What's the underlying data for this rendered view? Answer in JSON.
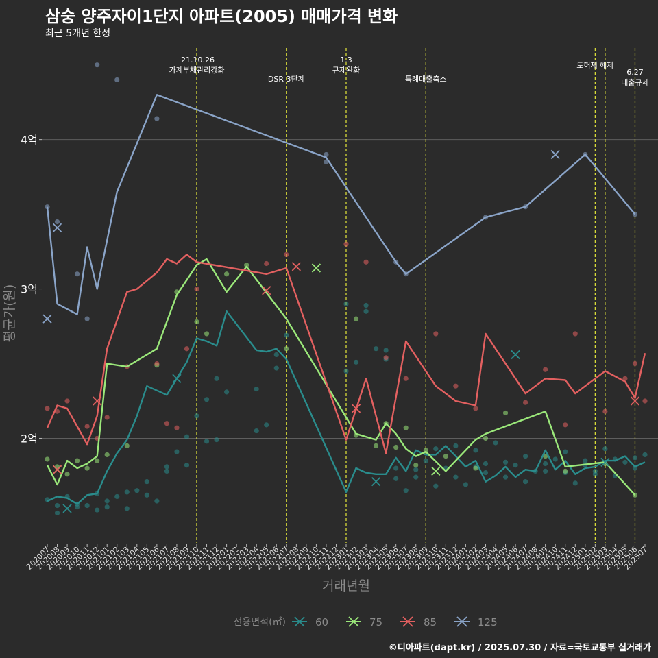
{
  "title": "삼숭 양주자이1단지 아파트(2005) 매매가격 변화",
  "subtitle": "최근 5개년 한정",
  "caption": "©디아파트(dapt.kr) / 2025.07.30 / 자료=국토교통부 실거래가",
  "colors": {
    "background": "#2b2b2b",
    "grid": "#5e5e5e",
    "text": "#ffffff",
    "axis_title": "#8a8a8a",
    "event_line": "#e5e83a"
  },
  "chart_data": {
    "type": "line",
    "xlabel": "거래년월",
    "ylabel": "평균가(원)",
    "ylim": [
      13000,
      46500
    ],
    "y_ticks": [
      {
        "value": 20000,
        "label": "2억"
      },
      {
        "value": 30000,
        "label": "3억"
      },
      {
        "value": 40000,
        "label": "4억"
      }
    ],
    "categories": [
      "202007",
      "202008",
      "202009",
      "202010",
      "202011",
      "202012",
      "202101",
      "202102",
      "202103",
      "202104",
      "202105",
      "202106",
      "202107",
      "202108",
      "202109",
      "202110",
      "202111",
      "202112",
      "202201",
      "202202",
      "202203",
      "202204",
      "202205",
      "202206",
      "202207",
      "202208",
      "202209",
      "202210",
      "202211",
      "202212",
      "202301",
      "202302",
      "202303",
      "202304",
      "202305",
      "202306",
      "202307",
      "202308",
      "202309",
      "202310",
      "202311",
      "202312",
      "202401",
      "202402",
      "202403",
      "202404",
      "202405",
      "202406",
      "202407",
      "202408",
      "202409",
      "202410",
      "202411",
      "202412",
      "202501",
      "202502",
      "202503",
      "202504",
      "202505",
      "202506",
      "202507"
    ],
    "legend": {
      "title": "전용면적(㎡)",
      "position": "bottom"
    },
    "events": [
      {
        "x": "202110",
        "label": "'21.10.26\n가계부채관리강화",
        "row": 0
      },
      {
        "x": "202207",
        "label": "DSR 3단계",
        "row": 1
      },
      {
        "x": "202301",
        "label": "1.3\n규제완화",
        "row": 0
      },
      {
        "x": "202309",
        "label": "특례대출축소",
        "row": 1
      },
      {
        "x": "202502",
        "label": "토허제 해제",
        "row": 2
      },
      {
        "x": "202503",
        "label": "",
        "row": 0
      },
      {
        "x": "202506",
        "label": "6.27\n대출규제",
        "row": 3
      }
    ],
    "series": [
      {
        "name": "60",
        "color": "#2a8c8c",
        "line": [
          [
            "202007",
            15800
          ],
          [
            "202008",
            16100
          ],
          [
            "202009",
            16000
          ],
          [
            "202010",
            15600
          ],
          [
            "202011",
            16200
          ],
          [
            "202012",
            16300
          ],
          [
            "202101",
            17800
          ],
          [
            "202102",
            19000
          ],
          [
            "202103",
            19900
          ],
          [
            "202104",
            21500
          ],
          [
            "202105",
            23500
          ],
          [
            "202106",
            23200
          ],
          [
            "202107",
            22900
          ],
          [
            "202108",
            24000
          ],
          [
            "202109",
            25100
          ],
          [
            "202110",
            26700
          ],
          [
            "202111",
            26500
          ],
          [
            "202112",
            26200
          ],
          [
            "202201",
            28500
          ],
          [
            "202204",
            25900
          ],
          [
            "202205",
            25800
          ],
          [
            "202206",
            26000
          ],
          [
            "202207",
            25300
          ],
          [
            "202301",
            16400
          ],
          [
            "202302",
            18000
          ],
          [
            "202303",
            17700
          ],
          [
            "202304",
            17600
          ],
          [
            "202305",
            17600
          ],
          [
            "202306",
            18700
          ],
          [
            "202307",
            17800
          ],
          [
            "202308",
            19200
          ],
          [
            "202309",
            18900
          ],
          [
            "202310",
            18900
          ],
          [
            "202311",
            19500
          ],
          [
            "202312",
            18800
          ],
          [
            "202401",
            18100
          ],
          [
            "202402",
            18500
          ],
          [
            "202403",
            17100
          ],
          [
            "202404",
            17500
          ],
          [
            "202405",
            18100
          ],
          [
            "202406",
            17400
          ],
          [
            "202407",
            17900
          ],
          [
            "202408",
            17800
          ],
          [
            "202409",
            19200
          ],
          [
            "202410",
            17900
          ],
          [
            "202411",
            18500
          ],
          [
            "202412",
            17600
          ],
          [
            "202501",
            18000
          ],
          [
            "202502",
            18100
          ],
          [
            "202503",
            18500
          ],
          [
            "202504",
            18500
          ],
          [
            "202505",
            18800
          ],
          [
            "202506",
            18100
          ],
          [
            "202507",
            18400
          ]
        ],
        "points": [
          15900,
          15000,
          15500,
          16100,
          15400,
          15600,
          15500,
          15200,
          16300,
          15800,
          15400,
          16100,
          15300,
          16400,
          16500,
          17100,
          16200,
          15800,
          18100,
          17800,
          19100,
          20100,
          18200,
          21500,
          19800,
          22600,
          19900,
          24000,
          23100,
          20500,
          23300,
          20900,
          24700,
          25600,
          26900,
          29000,
          24500,
          25100,
          28900,
          28500,
          26000,
          25900,
          25300,
          18000,
          17300,
          16500,
          17900,
          17400,
          18500,
          16800,
          19300,
          18000,
          17400,
          19500,
          16900,
          18100,
          19200,
          17700,
          18300,
          19700,
          18400,
          17400,
          18200,
          18800,
          17100,
          17800,
          18300,
          17800,
          18600,
          17700,
          19100,
          17000,
          18200,
          18500,
          17800,
          17600,
          19300,
          17500,
          18600,
          18400,
          18700,
          18000,
          18900
        ],
        "marks": [
          [
            "202009",
            15300
          ],
          [
            "202108",
            24000
          ],
          [
            "202304",
            17100
          ],
          [
            "202406",
            25600
          ],
          [
            "202503",
            18400
          ]
        ]
      },
      {
        "name": "75",
        "color": "#9be87a",
        "line": [
          [
            "202007",
            18200
          ],
          [
            "202008",
            16900
          ],
          [
            "202009",
            18500
          ],
          [
            "202010",
            18000
          ],
          [
            "202011",
            18300
          ],
          [
            "202012",
            18800
          ],
          [
            "202101",
            25000
          ],
          [
            "202103",
            24800
          ],
          [
            "202106",
            26000
          ],
          [
            "202108",
            29600
          ],
          [
            "202110",
            31600
          ],
          [
            "202111",
            32000
          ],
          [
            "202201",
            29800
          ],
          [
            "202203",
            31500
          ],
          [
            "202207",
            28000
          ],
          [
            "202302",
            20300
          ],
          [
            "202304",
            19900
          ],
          [
            "202305",
            21000
          ],
          [
            "202306",
            20300
          ],
          [
            "202307",
            19300
          ],
          [
            "202308",
            18800
          ],
          [
            "202309",
            19100
          ],
          [
            "202311",
            17800
          ],
          [
            "202402",
            19900
          ],
          [
            "202403",
            20300
          ],
          [
            "202405",
            20800
          ],
          [
            "202409",
            21800
          ],
          [
            "202411",
            18100
          ],
          [
            "202503",
            18400
          ],
          [
            "202506",
            16200
          ]
        ],
        "points": [
          18600,
          18100,
          17600,
          18500,
          18000,
          18500,
          18900,
          19500,
          24900,
          29800,
          27800,
          27000,
          31000,
          31600,
          26000,
          28000,
          20200,
          19500,
          21000,
          19400,
          20700,
          18200,
          19200,
          18800,
          18000,
          20000,
          21700,
          18800,
          17800,
          18300,
          16200
        ],
        "marks": [
          [
            "202008",
            17900
          ],
          [
            "202210",
            31400
          ],
          [
            "202310",
            17800
          ]
        ]
      },
      {
        "name": "85",
        "color": "#e36060",
        "line": [
          [
            "202007",
            20700
          ],
          [
            "202008",
            22200
          ],
          [
            "202009",
            22000
          ],
          [
            "202011",
            19600
          ],
          [
            "202012",
            21500
          ],
          [
            "202101",
            26000
          ],
          [
            "202103",
            29800
          ],
          [
            "202104",
            30000
          ],
          [
            "202106",
            31100
          ],
          [
            "202107",
            32000
          ],
          [
            "202108",
            31700
          ],
          [
            "202109",
            32300
          ],
          [
            "202110",
            31800
          ],
          [
            "202205",
            31000
          ],
          [
            "202207",
            31400
          ],
          [
            "202301",
            19900
          ],
          [
            "202303",
            24000
          ],
          [
            "202305",
            19000
          ],
          [
            "202307",
            26500
          ],
          [
            "202310",
            23500
          ],
          [
            "202312",
            22500
          ],
          [
            "202402",
            22200
          ],
          [
            "202403",
            27000
          ],
          [
            "202407",
            23000
          ],
          [
            "202409",
            24000
          ],
          [
            "202411",
            23900
          ],
          [
            "202412",
            23000
          ],
          [
            "202503",
            24500
          ],
          [
            "202505",
            23800
          ],
          [
            "202506",
            22700
          ],
          [
            "202507",
            25700
          ]
        ],
        "points": [
          22000,
          21800,
          22500,
          20800,
          20000,
          21400,
          24800,
          25000,
          21000,
          20700,
          26000,
          30000,
          31700,
          32300,
          33000,
          31800,
          25400,
          24000,
          27000,
          23500,
          22000,
          22400,
          24600,
          20900,
          27000,
          21800,
          24000,
          25000,
          22500
        ],
        "marks": [
          [
            "202008",
            17900
          ],
          [
            "202012",
            22500
          ],
          [
            "202205",
            29900
          ],
          [
            "202208",
            31500
          ],
          [
            "202302",
            22000
          ],
          [
            "202506",
            22500
          ]
        ]
      },
      {
        "name": "125",
        "color": "#8aa4c8",
        "line": [
          [
            "202007",
            35500
          ],
          [
            "202008",
            29000
          ],
          [
            "202010",
            28300
          ],
          [
            "202011",
            32800
          ],
          [
            "202012",
            30000
          ],
          [
            "202102",
            36500
          ],
          [
            "202106",
            43000
          ],
          [
            "202211",
            38800
          ],
          [
            "202306",
            31800
          ],
          [
            "202307",
            31000
          ],
          [
            "202403",
            34800
          ],
          [
            "202407",
            35500
          ],
          [
            "202501",
            39000
          ],
          [
            "202506",
            35000
          ]
        ],
        "points": [
          35500,
          34500,
          31000,
          28000,
          45000,
          44000,
          41400,
          39000,
          38500,
          31800,
          31000,
          34800,
          35500,
          39000,
          35000
        ],
        "marks": [
          [
            "202007",
            28000
          ],
          [
            "202008",
            34100
          ],
          [
            "202410",
            39000
          ]
        ]
      }
    ]
  }
}
